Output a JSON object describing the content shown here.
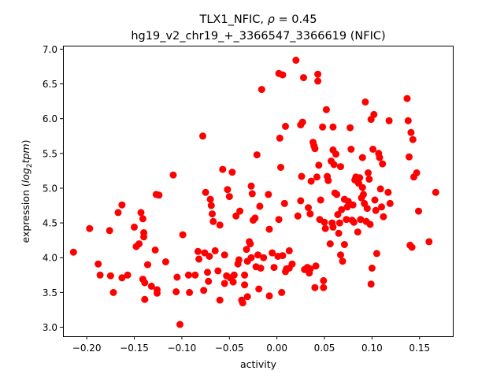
{
  "chart_data": {
    "type": "scatter",
    "title_line1_prefix": "TLX1_NFIC, ",
    "title_rho_symbol": "ρ",
    "title_rho_value": " = 0.45",
    "title_line2": "hg19_v2_chr19_+_3366547_3366619 (NFIC)",
    "xlabel": "activity",
    "ylabel_prefix": "expression (",
    "ylabel_math": "log",
    "ylabel_sub": "2",
    "ylabel_math2": "tpm",
    "ylabel_suffix": ")",
    "xlim": [
      -0.225,
      0.185
    ],
    "ylim": [
      2.87,
      7.05
    ],
    "xticks": [
      -0.2,
      -0.15,
      -0.1,
      -0.05,
      0.0,
      0.05,
      0.1,
      0.15
    ],
    "xtick_labels": [
      "−0.20",
      "−0.15",
      "−0.10",
      "−0.05",
      "0.00",
      "0.05",
      "0.10",
      "0.15"
    ],
    "yticks": [
      3.0,
      3.5,
      4.0,
      4.5,
      5.0,
      5.5,
      6.0,
      6.5,
      7.0
    ],
    "ytick_labels": [
      "3.0",
      "3.5",
      "4.0",
      "4.5",
      "5.0",
      "5.5",
      "6.0",
      "6.5",
      "7.0"
    ],
    "marker_color": "#ff0000",
    "grid": false,
    "points": [
      [
        -0.214,
        4.08
      ],
      [
        -0.197,
        4.42
      ],
      [
        -0.188,
        3.91
      ],
      [
        -0.186,
        3.75
      ],
      [
        -0.176,
        4.39
      ],
      [
        -0.175,
        3.74
      ],
      [
        -0.172,
        3.5
      ],
      [
        -0.167,
        4.65
      ],
      [
        -0.163,
        4.76
      ],
      [
        -0.163,
        3.71
      ],
      [
        -0.157,
        3.75
      ],
      [
        -0.15,
        4.44
      ],
      [
        -0.148,
        4.16
      ],
      [
        -0.145,
        4.2
      ],
      [
        -0.143,
        4.65
      ],
      [
        -0.141,
        4.56
      ],
      [
        -0.141,
        3.69
      ],
      [
        -0.14,
        4.36
      ],
      [
        -0.14,
        4.3
      ],
      [
        -0.139,
        3.64
      ],
      [
        -0.139,
        3.4
      ],
      [
        -0.136,
        3.9
      ],
      [
        -0.132,
        3.59
      ],
      [
        -0.128,
        4.11
      ],
      [
        -0.127,
        4.91
      ],
      [
        -0.126,
        3.54
      ],
      [
        -0.126,
        3.49
      ],
      [
        -0.124,
        4.9
      ],
      [
        -0.117,
        3.94
      ],
      [
        -0.109,
        5.19
      ],
      [
        -0.106,
        3.51
      ],
      [
        -0.105,
        3.72
      ],
      [
        -0.102,
        3.04
      ],
      [
        -0.099,
        4.33
      ],
      [
        -0.093,
        3.75
      ],
      [
        -0.092,
        3.5
      ],
      [
        -0.086,
        3.75
      ],
      [
        -0.083,
        4.09
      ],
      [
        -0.082,
        3.98
      ],
      [
        -0.078,
        5.75
      ],
      [
        -0.077,
        3.53
      ],
      [
        -0.076,
        4.07
      ],
      [
        -0.075,
        4.94
      ],
      [
        -0.073,
        3.79
      ],
      [
        -0.072,
        3.66
      ],
      [
        -0.071,
        4.02
      ],
      [
        -0.07,
        4.84
      ],
      [
        -0.069,
        4.75
      ],
      [
        -0.068,
        4.63
      ],
      [
        -0.067,
        4.52
      ],
      [
        -0.065,
        4.1
      ],
      [
        -0.062,
        3.81
      ],
      [
        -0.06,
        3.39
      ],
      [
        -0.06,
        4.47
      ],
      [
        -0.057,
        5.27
      ],
      [
        -0.055,
        4.04
      ],
      [
        -0.055,
        3.63
      ],
      [
        -0.053,
        3.74
      ],
      [
        -0.052,
        4.98
      ],
      [
        -0.05,
        4.88
      ],
      [
        -0.049,
        3.71
      ],
      [
        -0.047,
        5.23
      ],
      [
        -0.046,
        3.65
      ],
      [
        -0.045,
        3.75
      ],
      [
        -0.043,
        4.6
      ],
      [
        -0.041,
        3.91
      ],
      [
        -0.04,
        3.97
      ],
      [
        -0.039,
        4.67
      ],
      [
        -0.037,
        3.39
      ],
      [
        -0.036,
        3.35
      ],
      [
        -0.034,
        3.75
      ],
      [
        -0.034,
        3.61
      ],
      [
        -0.032,
        4.12
      ],
      [
        -0.031,
        3.95
      ],
      [
        -0.031,
        3.44
      ],
      [
        -0.029,
        4.23
      ],
      [
        -0.028,
        4.2
      ],
      [
        -0.027,
        5.03
      ],
      [
        -0.027,
        4.0
      ],
      [
        -0.026,
        4.92
      ],
      [
        -0.025,
        4.54
      ],
      [
        -0.023,
        4.57
      ],
      [
        -0.022,
        3.87
      ],
      [
        -0.021,
        5.48
      ],
      [
        -0.02,
        4.04
      ],
      [
        -0.019,
        3.55
      ],
      [
        -0.018,
        4.74
      ],
      [
        -0.017,
        3.85
      ],
      [
        -0.016,
        6.42
      ],
      [
        -0.014,
        4.0
      ],
      [
        -0.009,
        4.91
      ],
      [
        -0.008,
        4.41
      ],
      [
        -0.008,
        3.45
      ],
      [
        -0.005,
        4.07
      ],
      [
        -0.003,
        3.86
      ],
      [
        0.001,
        4.02
      ],
      [
        0.002,
        6.65
      ],
      [
        0.002,
        4.55
      ],
      [
        0.003,
        5.72
      ],
      [
        0.004,
        5.3
      ],
      [
        0.005,
        3.5
      ],
      [
        0.006,
        4.03
      ],
      [
        0.006,
        6.63
      ],
      [
        0.008,
        4.78
      ],
      [
        0.009,
        3.8
      ],
      [
        0.009,
        5.89
      ],
      [
        0.01,
        3.84
      ],
      [
        0.013,
        4.1
      ],
      [
        0.013,
        3.85
      ],
      [
        0.016,
        3.91
      ],
      [
        0.02,
        6.84
      ],
      [
        0.022,
        4.6
      ],
      [
        0.025,
        4.82
      ],
      [
        0.025,
        5.91
      ],
      [
        0.026,
        5.17
      ],
      [
        0.027,
        5.95
      ],
      [
        0.028,
        6.59
      ],
      [
        0.029,
        3.83
      ],
      [
        0.032,
        3.86
      ],
      [
        0.033,
        4.72
      ],
      [
        0.034,
        3.78
      ],
      [
        0.034,
        3.83
      ],
      [
        0.035,
        4.63
      ],
      [
        0.035,
        3.84
      ],
      [
        0.036,
        5.1
      ],
      [
        0.038,
        5.66
      ],
      [
        0.039,
        5.61
      ],
      [
        0.04,
        5.57
      ],
      [
        0.04,
        3.57
      ],
      [
        0.041,
        3.88
      ],
      [
        0.042,
        5.16
      ],
      [
        0.043,
        6.54
      ],
      [
        0.043,
        6.64
      ],
      [
        0.044,
        5.33
      ],
      [
        0.045,
        4.55
      ],
      [
        0.046,
        4.83
      ],
      [
        0.048,
        5.88
      ],
      [
        0.049,
        3.67
      ],
      [
        0.049,
        3.57
      ],
      [
        0.05,
        4.51
      ],
      [
        0.051,
        4.42
      ],
      [
        0.052,
        6.13
      ],
      [
        0.053,
        5.17
      ],
      [
        0.054,
        5.11
      ],
      [
        0.056,
        4.2
      ],
      [
        0.057,
        5.39
      ],
      [
        0.058,
        4.5
      ],
      [
        0.059,
        4.44
      ],
      [
        0.059,
        5.55
      ],
      [
        0.059,
        5.88
      ],
      [
        0.06,
        5.34
      ],
      [
        0.061,
        4.93
      ],
      [
        0.062,
        5.49
      ],
      [
        0.063,
        4.91
      ],
      [
        0.064,
        4.62
      ],
      [
        0.065,
        4.35
      ],
      [
        0.066,
        4.5
      ],
      [
        0.067,
        5.31
      ],
      [
        0.067,
        4.04
      ],
      [
        0.068,
        4.69
      ],
      [
        0.069,
        3.95
      ],
      [
        0.071,
        4.19
      ],
      [
        0.071,
        4.84
      ],
      [
        0.073,
        4.55
      ],
      [
        0.074,
        4.73
      ],
      [
        0.075,
        4.81
      ],
      [
        0.077,
        5.87
      ],
      [
        0.078,
        5.56
      ],
      [
        0.079,
        4.54
      ],
      [
        0.08,
        4.76
      ],
      [
        0.081,
        4.51
      ],
      [
        0.082,
        5.12
      ],
      [
        0.083,
        5.16
      ],
      [
        0.085,
        5.09
      ],
      [
        0.085,
        4.37
      ],
      [
        0.086,
        5.07
      ],
      [
        0.087,
        5.15
      ],
      [
        0.088,
        4.55
      ],
      [
        0.089,
        4.86
      ],
      [
        0.09,
        5.44
      ],
      [
        0.09,
        5.01
      ],
      [
        0.091,
        4.91
      ],
      [
        0.092,
        4.78
      ],
      [
        0.093,
        6.24
      ],
      [
        0.094,
        4.52
      ],
      [
        0.095,
        4.71
      ],
      [
        0.096,
        5.22
      ],
      [
        0.097,
        5.13
      ],
      [
        0.098,
        4.48
      ],
      [
        0.099,
        3.62
      ],
      [
        0.099,
        5.99
      ],
      [
        0.1,
        3.85
      ],
      [
        0.101,
        5.56
      ],
      [
        0.102,
        6.06
      ],
      [
        0.103,
        4.83
      ],
      [
        0.104,
        4.68
      ],
      [
        0.105,
        4.06
      ],
      [
        0.107,
        5.5
      ],
      [
        0.108,
        5.44
      ],
      [
        0.109,
        4.99
      ],
      [
        0.11,
        4.73
      ],
      [
        0.111,
        5.35
      ],
      [
        0.112,
        4.59
      ],
      [
        0.117,
        4.94
      ],
      [
        0.118,
        5.97
      ],
      [
        0.119,
        4.78
      ],
      [
        0.137,
        6.29
      ],
      [
        0.138,
        5.97
      ],
      [
        0.139,
        5.45
      ],
      [
        0.14,
        4.18
      ],
      [
        0.141,
        5.8
      ],
      [
        0.142,
        4.15
      ],
      [
        0.143,
        5.7
      ],
      [
        0.144,
        5.16
      ],
      [
        0.147,
        5.22
      ],
      [
        0.149,
        4.67
      ],
      [
        0.16,
        4.23
      ],
      [
        0.167,
        4.94
      ]
    ]
  }
}
